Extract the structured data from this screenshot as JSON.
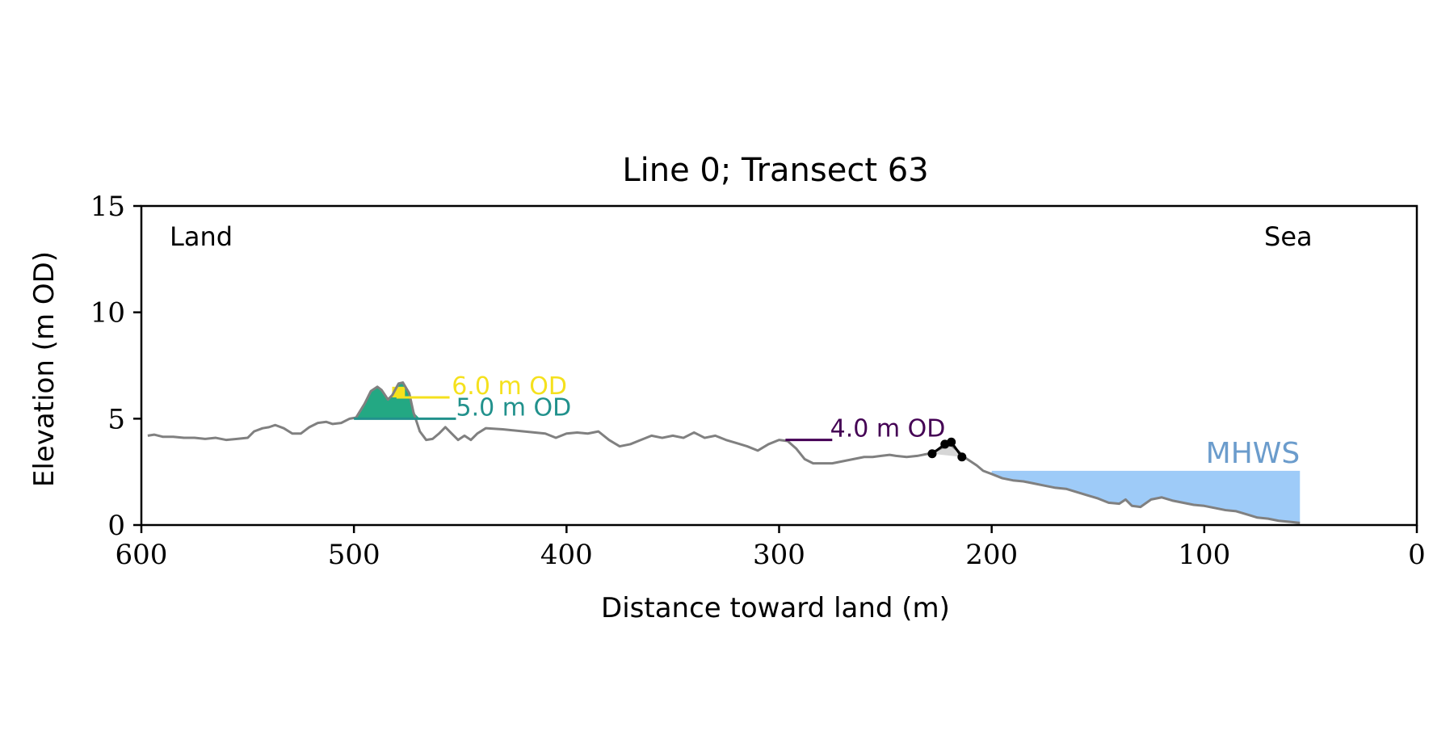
{
  "chart_data": {
    "type": "area",
    "title": "Line 0; Transect 63",
    "xlabel": "Distance toward land (m)",
    "ylabel": "Elevation (m OD)",
    "xlim": [
      600,
      0
    ],
    "ylim": [
      0,
      15
    ],
    "x_axis_inverted": true,
    "xticks": [
      600,
      500,
      400,
      300,
      200,
      100,
      0
    ],
    "yticks": [
      0,
      5,
      10,
      15
    ],
    "grid": false,
    "annotations": {
      "land_label": "Land",
      "sea_label": "Sea",
      "mhws_label": "MHWS",
      "level_6": "6.0 m OD",
      "level_5": "5.0 m OD",
      "level_4": "4.0 m OD"
    },
    "colors": {
      "profile": "#808080",
      "sea_fill": "#9ecbf8",
      "mhws_text": "#6b9ccc",
      "level_6": "#f5e11d",
      "level_5": "#21918c",
      "level_4": "#440154",
      "flood_fill": "#23a883",
      "dune_fill": "#d6d6d6",
      "dune_points": "#000000"
    },
    "mhws_level": 2.55,
    "mhws_x_range": [
      200,
      55
    ],
    "levels": [
      {
        "value": 6.0,
        "x_range": [
          480,
          455
        ],
        "label_x": 454
      },
      {
        "value": 5.0,
        "x_range": [
          500,
          452
        ],
        "label_x": 452
      },
      {
        "value": 4.0,
        "x_range": [
          297,
          275
        ],
        "label_x": 276
      }
    ],
    "flood_region": {
      "x_range": [
        501,
        469
      ],
      "level": 5.0
    },
    "flood_region_upper": {
      "x_range": [
        482,
        476
      ],
      "level": 6.0
    },
    "dune_points": [
      {
        "x": 228,
        "y": 3.35
      },
      {
        "x": 222,
        "y": 3.8
      },
      {
        "x": 219,
        "y": 3.9
      },
      {
        "x": 214,
        "y": 3.2
      }
    ],
    "profile": {
      "x": [
        597,
        594,
        590,
        585,
        580,
        575,
        570,
        565,
        560,
        555,
        550,
        547,
        543,
        540,
        537,
        533,
        529,
        525,
        521,
        517,
        513,
        510,
        506,
        502,
        499,
        495,
        492,
        489,
        487,
        484,
        482,
        479,
        477,
        474,
        472,
        469,
        466,
        463,
        460,
        457,
        454,
        451,
        448,
        445,
        442,
        438,
        430,
        420,
        410,
        405,
        400,
        395,
        390,
        385,
        380,
        375,
        370,
        365,
        360,
        355,
        350,
        345,
        340,
        335,
        330,
        325,
        320,
        315,
        310,
        305,
        300,
        296,
        292,
        288,
        284,
        280,
        275,
        270,
        265,
        260,
        256,
        252,
        248,
        245,
        240,
        235,
        230,
        226,
        222,
        219,
        216,
        213,
        210,
        207,
        204,
        200,
        195,
        190,
        185,
        180,
        175,
        170,
        165,
        160,
        155,
        150,
        145,
        140,
        137,
        134,
        130,
        125,
        120,
        115,
        110,
        105,
        100,
        95,
        90,
        85,
        80,
        75,
        70,
        65,
        60,
        55
      ],
      "y": [
        4.2,
        4.25,
        4.15,
        4.15,
        4.1,
        4.1,
        4.05,
        4.1,
        4.0,
        4.05,
        4.1,
        4.4,
        4.55,
        4.6,
        4.7,
        4.55,
        4.3,
        4.3,
        4.6,
        4.8,
        4.85,
        4.75,
        4.8,
        5.0,
        5.05,
        5.7,
        6.3,
        6.5,
        6.35,
        5.9,
        6.1,
        6.65,
        6.7,
        6.2,
        5.3,
        4.4,
        4.0,
        4.05,
        4.3,
        4.6,
        4.3,
        4.0,
        4.2,
        4.0,
        4.3,
        4.55,
        4.5,
        4.4,
        4.3,
        4.1,
        4.3,
        4.35,
        4.3,
        4.4,
        4.0,
        3.7,
        3.8,
        4.0,
        4.2,
        4.1,
        4.2,
        4.1,
        4.35,
        4.1,
        4.2,
        4.0,
        3.85,
        3.7,
        3.5,
        3.8,
        4.0,
        3.95,
        3.6,
        3.1,
        2.9,
        2.9,
        2.9,
        3.0,
        3.1,
        3.2,
        3.2,
        3.25,
        3.3,
        3.25,
        3.2,
        3.25,
        3.35,
        3.5,
        3.7,
        3.75,
        3.5,
        3.2,
        3.0,
        2.8,
        2.55,
        2.4,
        2.2,
        2.1,
        2.05,
        1.95,
        1.85,
        1.75,
        1.7,
        1.55,
        1.4,
        1.25,
        1.05,
        1.0,
        1.2,
        0.9,
        0.85,
        1.2,
        1.3,
        1.15,
        1.05,
        0.95,
        0.9,
        0.8,
        0.7,
        0.65,
        0.5,
        0.35,
        0.3,
        0.2,
        0.15,
        0.1
      ]
    }
  }
}
